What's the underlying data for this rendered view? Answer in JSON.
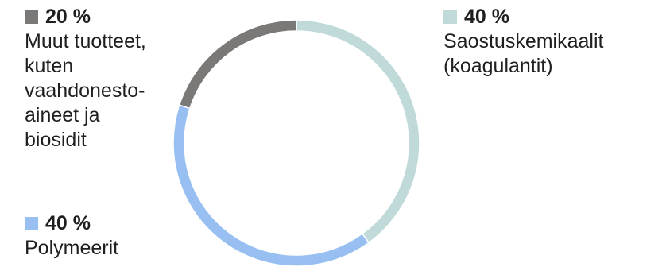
{
  "chart_data": {
    "type": "pie",
    "style": "donut",
    "title": "",
    "slices": [
      {
        "value_label": "40 %",
        "value": 40,
        "label": "Saostuskemikaalit\n(koagulantit)",
        "color": "#bfdad9"
      },
      {
        "value_label": "40 %",
        "value": 40,
        "label": "Polymeerit",
        "color": "#97bff2"
      },
      {
        "value_label": "20 %",
        "value": 20,
        "label": "Muut tuotteet,\nkuten\nvaahdonesto-\naineet ja\nbiosidit",
        "color": "#7b7878"
      }
    ]
  }
}
